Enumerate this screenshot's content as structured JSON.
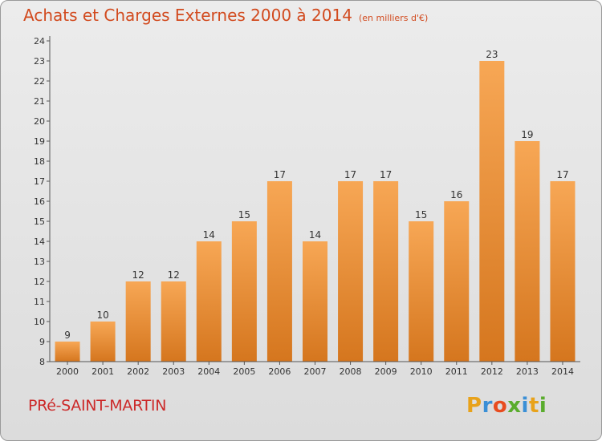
{
  "title": "Achats et Charges Externes 2000 à 2014",
  "unit_note": "(en milliers d'€)",
  "commune": "PRé-SAINT-MARTIN",
  "logo_text": "Proxiti",
  "colors": {
    "title": "#d24a1e",
    "commune": "#cc2a2a",
    "bar_top": "#f7a755",
    "bar_bottom": "#d5761e",
    "axis": "#555555",
    "grid": "#bcbcbc",
    "logo": [
      "#e8a21a",
      "#3a8fd6",
      "#e84c1f",
      "#5aac2d",
      "#3a8fd6",
      "#e8a21a",
      "#5aac2d"
    ]
  },
  "chart_data": {
    "type": "bar",
    "categories": [
      "2000",
      "2001",
      "2002",
      "2003",
      "2004",
      "2005",
      "2006",
      "2007",
      "2008",
      "2009",
      "2010",
      "2011",
      "2012",
      "2013",
      "2014"
    ],
    "values": [
      9,
      10,
      12,
      12,
      14,
      15,
      17,
      14,
      17,
      17,
      15,
      16,
      23,
      19,
      17
    ],
    "ylim": [
      8,
      24
    ],
    "yticks": [
      "8",
      "9",
      "10",
      "11",
      "12",
      "13",
      "14",
      "15",
      "16",
      "17",
      "18",
      "19",
      "20",
      "21",
      "22",
      "23",
      "24"
    ],
    "grid": false,
    "xlabel": "",
    "ylabel": ""
  }
}
